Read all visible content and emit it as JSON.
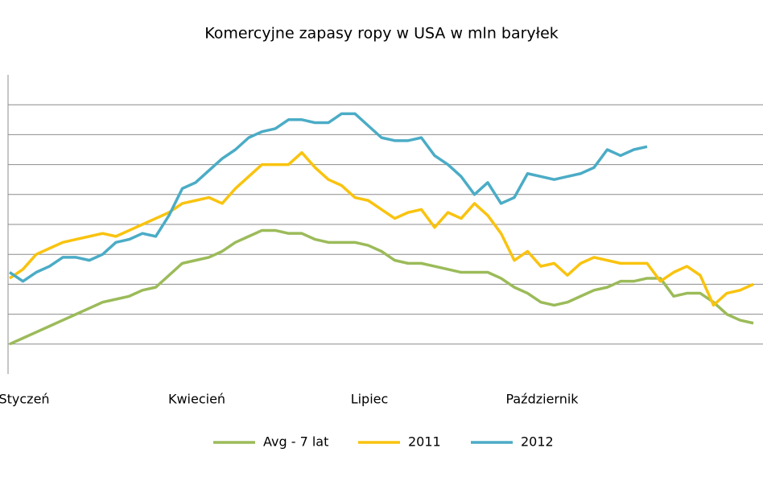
{
  "chart_data": {
    "type": "line",
    "title": "Komercyjne zapasy ropy w USA w mln baryłek",
    "categories": [
      "Styczeń",
      null,
      null,
      null,
      null,
      null,
      null,
      null,
      null,
      null,
      null,
      null,
      null,
      "Kwiecień",
      null,
      null,
      null,
      null,
      null,
      null,
      null,
      null,
      null,
      null,
      null,
      null,
      "Lipiec",
      null,
      null,
      null,
      null,
      null,
      null,
      null,
      null,
      null,
      null,
      null,
      null,
      "Październik",
      null,
      null,
      null,
      null,
      null,
      null,
      null,
      null,
      null,
      null,
      null,
      null,
      null,
      null,
      null,
      null,
      null
    ],
    "series": [
      {
        "name": "Avg - 7 lat",
        "color": "#9bbb59",
        "values": [
          1.0,
          1.2,
          1.4,
          1.6,
          1.8,
          2.0,
          2.2,
          2.4,
          2.5,
          2.6,
          2.8,
          2.9,
          3.3,
          3.7,
          3.8,
          3.9,
          4.1,
          4.4,
          4.6,
          4.8,
          4.8,
          4.7,
          4.7,
          4.5,
          4.4,
          4.4,
          4.4,
          4.3,
          4.1,
          3.8,
          3.7,
          3.7,
          3.6,
          3.5,
          3.4,
          3.4,
          3.4,
          3.2,
          2.9,
          2.7,
          2.4,
          2.3,
          2.4,
          2.6,
          2.8,
          2.9,
          3.1,
          3.1,
          3.2,
          3.2,
          2.6,
          2.7,
          2.7,
          2.4,
          2.0,
          1.8,
          1.7
        ]
      },
      {
        "name": "2011",
        "color": "#f9c30f",
        "values": [
          3.2,
          3.5,
          4.0,
          4.2,
          4.4,
          4.5,
          4.6,
          4.7,
          4.6,
          4.8,
          5.0,
          5.2,
          5.4,
          5.7,
          5.8,
          5.9,
          5.7,
          6.2,
          6.6,
          7.0,
          7.0,
          7.0,
          7.4,
          6.9,
          6.5,
          6.3,
          5.9,
          5.8,
          5.5,
          5.2,
          5.4,
          5.5,
          4.9,
          5.4,
          5.2,
          5.7,
          5.3,
          4.7,
          3.8,
          4.1,
          3.6,
          3.7,
          3.3,
          3.7,
          3.9,
          3.8,
          3.7,
          3.7,
          3.7,
          3.1,
          3.4,
          3.6,
          3.3,
          2.3,
          2.7,
          2.8,
          3.0
        ]
      },
      {
        "name": "2012",
        "color": "#4bacc6",
        "values": [
          3.4,
          3.1,
          3.4,
          3.6,
          3.9,
          3.9,
          3.8,
          4.0,
          4.4,
          4.5,
          4.7,
          4.6,
          5.3,
          6.2,
          6.4,
          6.8,
          7.2,
          7.5,
          7.9,
          8.1,
          8.2,
          8.5,
          8.5,
          8.4,
          8.4,
          8.7,
          8.7,
          8.3,
          7.9,
          7.8,
          7.8,
          7.9,
          7.3,
          7.0,
          6.6,
          6.0,
          6.4,
          5.7,
          5.9,
          6.7,
          6.6,
          6.5,
          6.6,
          6.7,
          6.9,
          7.5,
          7.3,
          7.5,
          7.6,
          null,
          null,
          null,
          null,
          null,
          null,
          null,
          null
        ]
      }
    ],
    "ylim": [
      0,
      10
    ],
    "yticks": [
      1,
      2,
      3,
      4,
      5,
      6,
      7,
      8,
      9
    ],
    "grid": true,
    "legend": "bottom"
  }
}
